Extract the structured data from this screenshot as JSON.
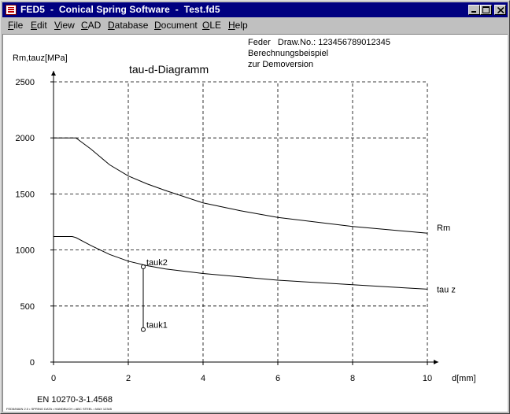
{
  "window": {
    "title": "FED5  -  Conical Spring Software  -  Test.fd5",
    "controls": [
      "minimize",
      "maximize",
      "close"
    ]
  },
  "menu": [
    {
      "label": "File",
      "ul": "F",
      "rest": "ile"
    },
    {
      "label": "Edit",
      "ul": "E",
      "rest": "dit"
    },
    {
      "label": "View",
      "ul": "V",
      "rest": "iew"
    },
    {
      "label": "CAD",
      "ul": "C",
      "rest": "AD"
    },
    {
      "label": "Database",
      "ul": "D",
      "rest": "atabase"
    },
    {
      "label": "Document",
      "ul": "D",
      "rest": "ocument"
    },
    {
      "label": "OLE",
      "ul": "O",
      "rest": "LE"
    },
    {
      "label": "Help",
      "ul": "H",
      "rest": "elp"
    }
  ],
  "header": {
    "line1": "Feder   Draw.No.: 123456789012345",
    "line2": "Berechnungsbeispiel",
    "line3": "zur Demoversion"
  },
  "footer": {
    "standard": "EN 10270-3-1.4568",
    "tiny_text": "FED5/MAIN 2.0 • SPRING DATA • HANDBUCH • ABC STEEL • MAX 12345"
  },
  "chart_data": {
    "type": "line",
    "title": "tau-d-Diagramm",
    "xlabel": "d[mm]",
    "ylabel": "Rm,tauz[MPa]",
    "xlim": [
      0,
      10
    ],
    "ylim": [
      0,
      2500
    ],
    "x_ticks": [
      0,
      2,
      4,
      6,
      8,
      10
    ],
    "y_ticks": [
      0,
      500,
      1000,
      1500,
      2000,
      2500
    ],
    "grid": "dashed",
    "series": [
      {
        "name": "Rm",
        "x": [
          0.0,
          0.5,
          0.6,
          1.0,
          1.5,
          2.0,
          2.5,
          3.0,
          4.0,
          5.0,
          6.0,
          7.0,
          8.0,
          9.0,
          10.0
        ],
        "y": [
          2000,
          2000,
          2000,
          1900,
          1760,
          1660,
          1590,
          1530,
          1420,
          1350,
          1290,
          1250,
          1210,
          1180,
          1150
        ]
      },
      {
        "name": "tau z",
        "x": [
          0.0,
          0.5,
          0.6,
          1.0,
          1.5,
          2.0,
          2.5,
          3.0,
          4.0,
          5.0,
          6.0,
          7.0,
          8.0,
          9.0,
          10.0
        ],
        "y": [
          1120,
          1120,
          1110,
          1040,
          960,
          900,
          860,
          830,
          790,
          760,
          730,
          710,
          690,
          670,
          650
        ]
      }
    ],
    "annotations": [
      {
        "label": "tauk2",
        "x": 2.4,
        "y": 850
      },
      {
        "label": "tauk1",
        "x": 2.4,
        "y": 290
      }
    ]
  }
}
